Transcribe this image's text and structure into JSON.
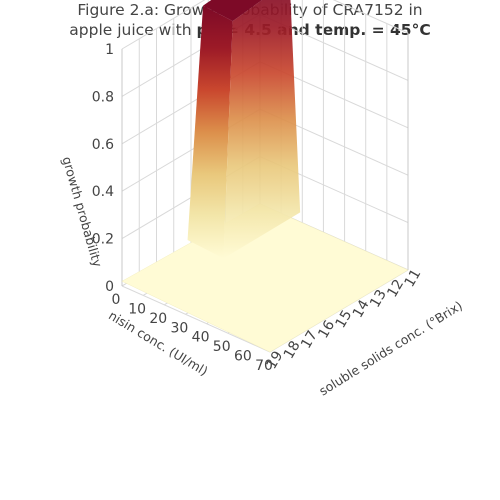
{
  "title": {
    "line1": "Figure 2.a: Growth probability of CRA7152 in",
    "line2_prefix": "apple juice with ",
    "line2_bold": "pH = 4.5 and temp. = 45°C"
  },
  "chart_data": {
    "type": "surface",
    "z_label": "growth probability",
    "x_label": "nisin conc. (UI/ml)",
    "y_label": "soluble solids conc. (°Brix)",
    "z_ticks": [
      "0",
      "0.2",
      "0.4",
      "0.6",
      "0.8",
      "1"
    ],
    "x_ticks": [
      "0",
      "10",
      "20",
      "30",
      "40",
      "50",
      "60",
      "70"
    ],
    "y_ticks": [
      "11",
      "12",
      "13",
      "14",
      "15",
      "16",
      "17",
      "18",
      "19"
    ],
    "xlim": [
      0,
      70
    ],
    "ylim": [
      11,
      19
    ],
    "zlim": [
      0,
      1
    ],
    "colorscale": [
      "#fffbd5",
      "#f3e6aa",
      "#e9c87c",
      "#dc8f4b",
      "#c9472e",
      "#9c1a27",
      "#7d0a27"
    ],
    "surface_description": "High plateau (~1) at low nisin and low soluble solids; drops steeply to ~0 elsewhere",
    "samples": [
      {
        "nisin": 0,
        "brix": 11,
        "p": 1.0
      },
      {
        "nisin": 0,
        "brix": 14,
        "p": 1.0
      },
      {
        "nisin": 0,
        "brix": 15,
        "p": 0.05
      },
      {
        "nisin": 0,
        "brix": 19,
        "p": 0.02
      },
      {
        "nisin": 10,
        "brix": 11,
        "p": 1.0
      },
      {
        "nisin": 10,
        "brix": 14,
        "p": 0.98
      },
      {
        "nisin": 20,
        "brix": 11,
        "p": 0.08
      },
      {
        "nisin": 40,
        "brix": 11,
        "p": 0.02
      },
      {
        "nisin": 70,
        "brix": 11,
        "p": 0.0
      },
      {
        "nisin": 70,
        "brix": 19,
        "p": 0.0
      }
    ]
  }
}
